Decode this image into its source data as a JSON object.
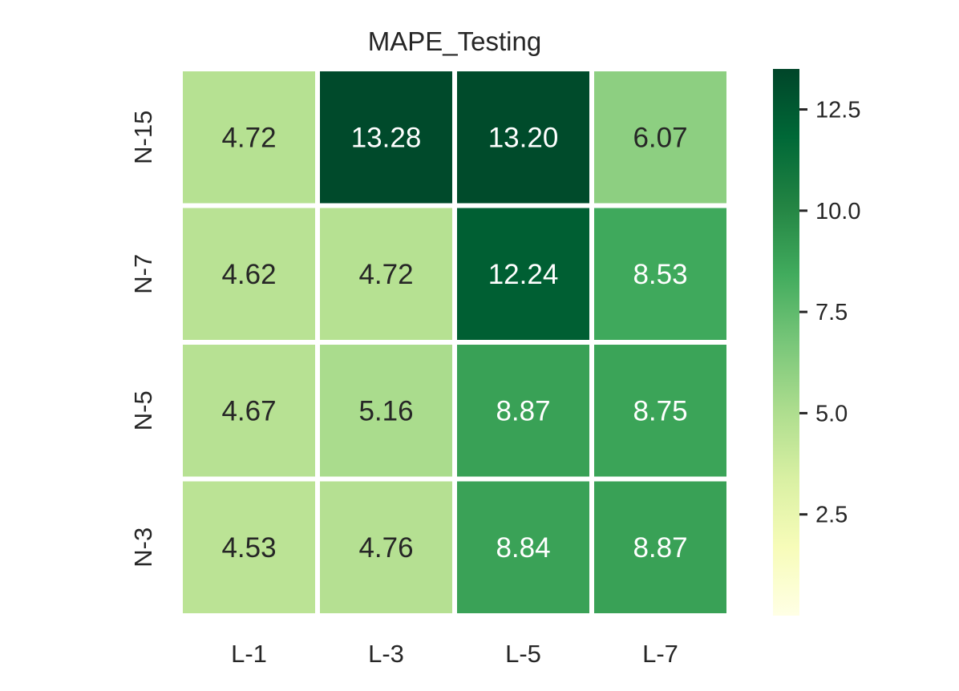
{
  "chart_data": {
    "type": "heatmap",
    "title": "MAPE_Testing",
    "xlabel": "",
    "ylabel": "",
    "x_categories": [
      "L-1",
      "L-3",
      "L-5",
      "L-7"
    ],
    "y_categories": [
      "N-15",
      "N-7",
      "N-5",
      "N-3"
    ],
    "values": [
      [
        4.72,
        13.28,
        13.2,
        6.07
      ],
      [
        4.62,
        4.72,
        12.24,
        8.53
      ],
      [
        4.67,
        5.16,
        8.87,
        8.75
      ],
      [
        4.53,
        4.76,
        8.84,
        8.87
      ]
    ],
    "value_labels": [
      [
        "4.72",
        "13.28",
        "13.20",
        "6.07"
      ],
      [
        "4.62",
        "4.72",
        "12.24",
        "8.53"
      ],
      [
        "4.67",
        "5.16",
        "8.87",
        "8.75"
      ],
      [
        "4.53",
        "4.76",
        "8.84",
        "8.87"
      ]
    ],
    "colormap": "YlGn",
    "color_range": [
      0,
      13.5
    ],
    "colormap_stops": [
      "#ffffe5",
      "#f7fcb9",
      "#d9f0a3",
      "#addd8e",
      "#78c679",
      "#41ab5d",
      "#238443",
      "#006837",
      "#004529"
    ],
    "colorbar": {
      "ticks": [
        2.5,
        5.0,
        7.5,
        10.0,
        12.5
      ],
      "tick_labels": [
        "2.5",
        "5.0",
        "7.5",
        "10.0",
        "12.5"
      ]
    },
    "text_colors": {
      "dark": "#262626",
      "light": "#ffffff",
      "light_above": 8
    },
    "grid": false,
    "cell_separator_color": "#ffffff"
  }
}
